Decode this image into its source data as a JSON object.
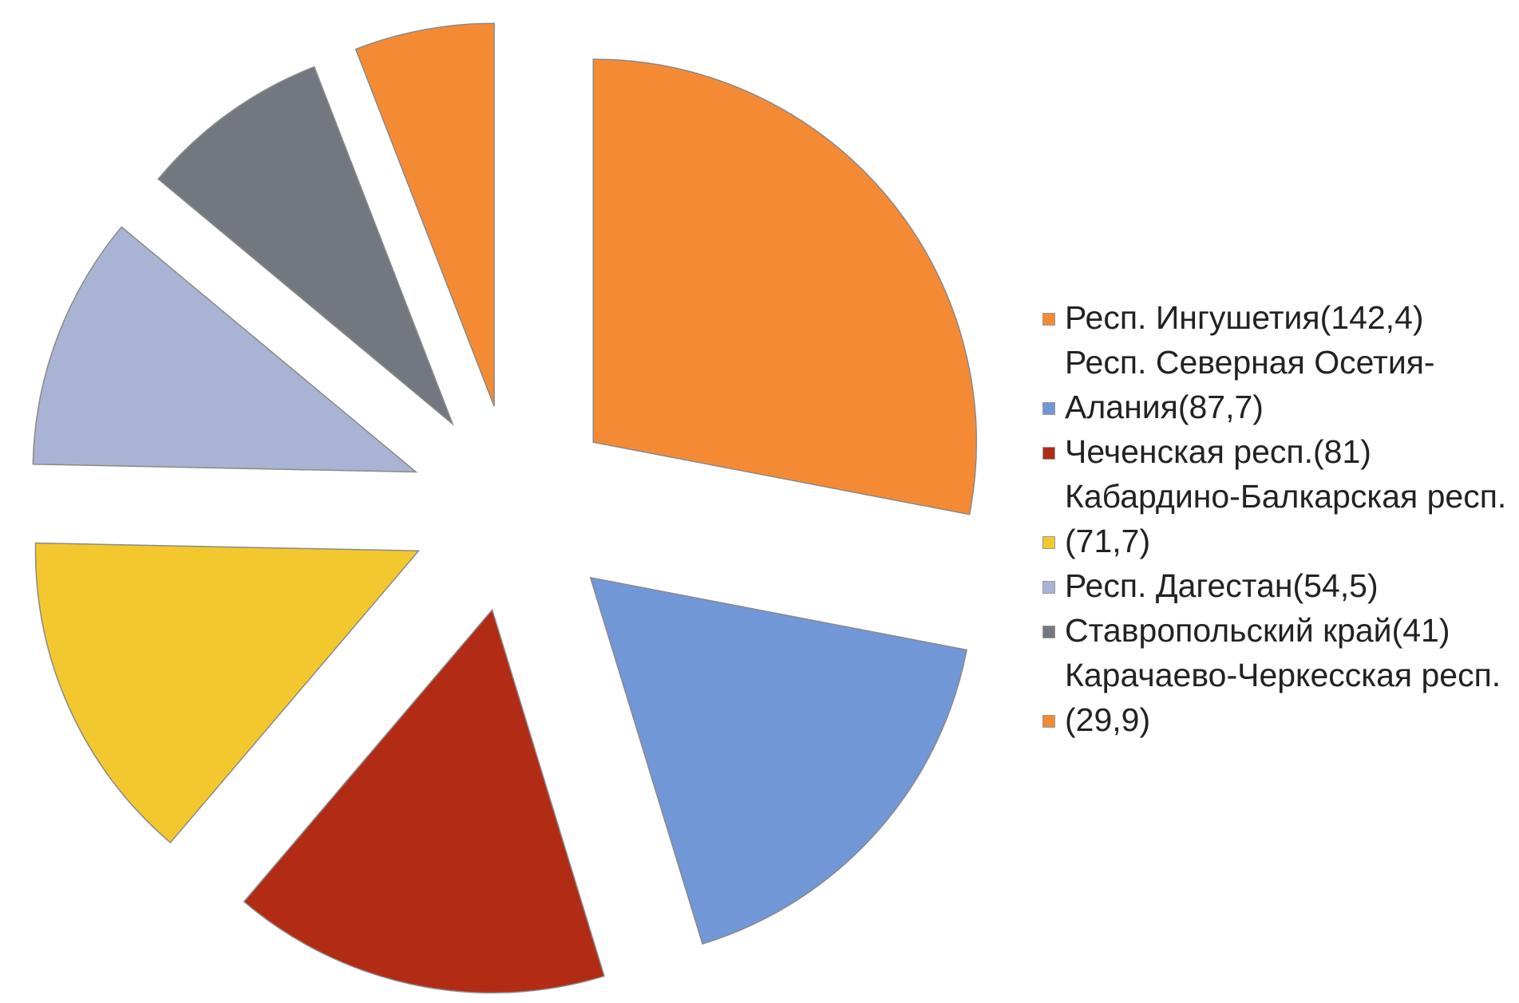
{
  "chart_data": {
    "type": "pie",
    "categories": [
      "Респ. Ингушетия(142,4)",
      "Респ. Северная Осетия-Алания(87,7)",
      "Чеченская респ.(81)",
      "Кабардино-Балкарская респ.(71,7)",
      "Респ. Дагестан(54,5)",
      "Ставропольский край(41)",
      "Карачаево-Черкесская респ.(29,9)"
    ],
    "values": [
      142.4,
      87.7,
      81,
      71.7,
      54.5,
      41,
      29.9
    ],
    "colors": [
      "#f58a35",
      "#7297d6",
      "#b22b15",
      "#f2c82e",
      "#a9b4d4",
      "#737880",
      "#f58a35"
    ],
    "legend": "right"
  }
}
